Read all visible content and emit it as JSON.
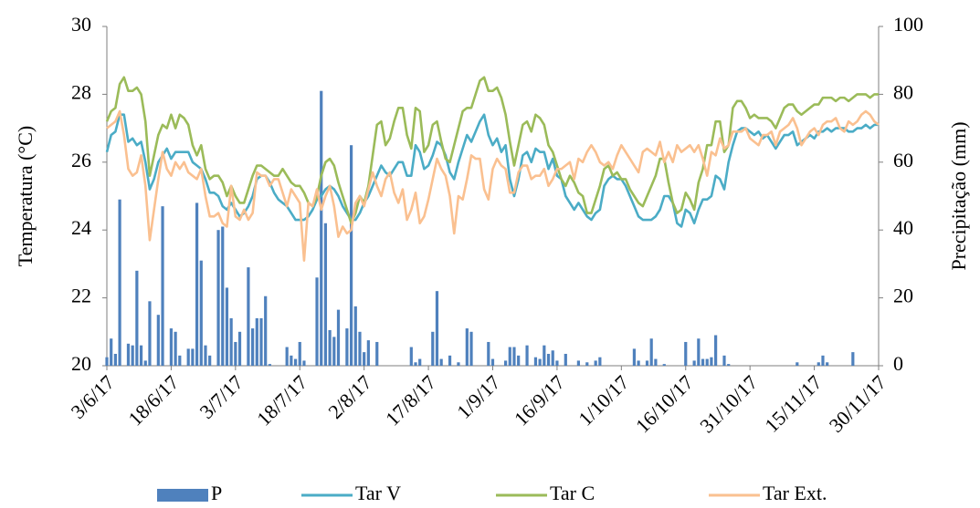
{
  "chart_data": {
    "type": "bar-line",
    "y_label": "Temperatura (°C)",
    "y2_label": "Precipitação (mm)",
    "categories": [
      "3/6/17",
      null,
      null,
      null,
      null,
      null,
      null,
      null,
      null,
      null,
      null,
      null,
      null,
      null,
      null,
      "18/6/17",
      null,
      null,
      null,
      null,
      null,
      null,
      null,
      null,
      null,
      null,
      null,
      null,
      null,
      null,
      "3/7/17",
      null,
      null,
      null,
      null,
      null,
      null,
      null,
      null,
      null,
      null,
      null,
      null,
      null,
      null,
      "18/7/17",
      null,
      null,
      null,
      null,
      null,
      null,
      null,
      null,
      null,
      null,
      null,
      null,
      null,
      null,
      "2/8/17",
      null,
      null,
      null,
      null,
      null,
      null,
      null,
      null,
      null,
      null,
      null,
      null,
      null,
      null,
      "17/8/17",
      null,
      null,
      null,
      null,
      null,
      null,
      null,
      null,
      null,
      null,
      null,
      null,
      null,
      null,
      "1/9/17",
      null,
      null,
      null,
      null,
      null,
      null,
      null,
      null,
      null,
      null,
      null,
      null,
      null,
      null,
      "16/9/17",
      null,
      null,
      null,
      null,
      null,
      null,
      null,
      null,
      null,
      null,
      null,
      null,
      null,
      null,
      "1/10/17",
      null,
      null,
      null,
      null,
      null,
      null,
      null,
      null,
      null,
      null,
      null,
      null,
      null,
      null,
      "16/10/17",
      null,
      null,
      null,
      null,
      null,
      null,
      null,
      null,
      null,
      null,
      null,
      null,
      null,
      null,
      "31/10/17",
      null,
      null,
      null,
      null,
      null,
      null,
      null,
      null,
      null,
      null,
      null,
      null,
      null,
      null,
      "15/11/17",
      null,
      null,
      null,
      null,
      null,
      null,
      null,
      null,
      null,
      null,
      null,
      null,
      null,
      null,
      "30/11/17"
    ],
    "ylim": [
      20,
      30
    ],
    "yticks": [
      20,
      22,
      24,
      26,
      28,
      30
    ],
    "y2lim": [
      0,
      100
    ],
    "y2ticks": [
      0,
      20,
      40,
      60,
      80,
      100
    ],
    "legend": "bottom",
    "series": [
      {
        "name": "P",
        "type": "bar",
        "axis": "y2",
        "color": "#4f81bd",
        "values": [
          2.5,
          8,
          3.5,
          49,
          0,
          6.5,
          6,
          28,
          6,
          1.5,
          19,
          0,
          15,
          47,
          0,
          11,
          10,
          3,
          0,
          5,
          5,
          48,
          31,
          6,
          3,
          0,
          40,
          41,
          23,
          14,
          7,
          10,
          0,
          29,
          11,
          14,
          14,
          20.5,
          0.5,
          0,
          0,
          0,
          5.5,
          3,
          2,
          7,
          1.5,
          0,
          0,
          26,
          81,
          42,
          10.5,
          8.5,
          16.5,
          0,
          11,
          65,
          17.5,
          10,
          4,
          7.5,
          0,
          7,
          0,
          0,
          0,
          0,
          0,
          0,
          0,
          5.5,
          1,
          2,
          0,
          0,
          10,
          22,
          2,
          0,
          3,
          0,
          1,
          0,
          11,
          10,
          0,
          0,
          0,
          7,
          2,
          0,
          0,
          1.5,
          5.5,
          5.5,
          3,
          0,
          6,
          0,
          2.5,
          2,
          6,
          3.5,
          4.5,
          1.5,
          0,
          3.5,
          0,
          0,
          1.5,
          0,
          1,
          0,
          1.5,
          2.5,
          0,
          0,
          0,
          0,
          0,
          0,
          0,
          5,
          1.5,
          0,
          1.5,
          8,
          2,
          0,
          0.5,
          0,
          0,
          0,
          0,
          7,
          0,
          1.5,
          8,
          2,
          2,
          2.5,
          9,
          0,
          3,
          0.5,
          0,
          0,
          0,
          0,
          0,
          0,
          0,
          0,
          0,
          0,
          0,
          0,
          0,
          0,
          0,
          1,
          0,
          0,
          0,
          0,
          1,
          3,
          1,
          0,
          0,
          0,
          0,
          0,
          4,
          0,
          0,
          0,
          0,
          0,
          0
        ]
      },
      {
        "name": "Tar V",
        "type": "line",
        "color": "#4bacc6",
        "values": [
          26.3,
          26.8,
          26.9,
          27.4,
          27.4,
          26.6,
          26.7,
          26.5,
          26.6,
          26.0,
          25.2,
          25.5,
          26.0,
          26.2,
          26.4,
          26.1,
          26.3,
          26.3,
          26.3,
          26.3,
          26.0,
          25.9,
          25.8,
          25.5,
          25.1,
          25.1,
          25.0,
          24.7,
          24.6,
          24.8,
          24.6,
          24.4,
          24.5,
          24.7,
          25.0,
          25.5,
          25.6,
          25.6,
          25.4,
          25.1,
          24.9,
          24.8,
          24.7,
          24.5,
          24.3,
          24.3,
          24.3,
          24.4,
          24.6,
          24.9,
          25.0,
          25.2,
          25.3,
          25.2,
          25.0,
          24.7,
          24.5,
          24.3,
          24.3,
          24.5,
          24.8,
          25.0,
          25.3,
          25.6,
          25.9,
          25.7,
          25.6,
          25.8,
          26.0,
          26.0,
          25.6,
          25.6,
          26.5,
          26.3,
          25.8,
          25.9,
          26.2,
          26.6,
          26.5,
          26.2,
          25.7,
          25.5,
          26.0,
          26.4,
          26.8,
          26.6,
          26.9,
          27.2,
          27.4,
          26.8,
          26.5,
          26.7,
          26.3,
          26.5,
          25.5,
          25.0,
          25.5,
          26.2,
          26.3,
          26.0,
          26.4,
          26.3,
          26.3,
          25.8,
          26.1,
          25.6,
          25.5,
          25.0,
          24.8,
          24.6,
          24.8,
          24.6,
          24.4,
          24.3,
          24.5,
          24.6,
          25.3,
          25.5,
          25.6,
          25.5,
          25.5,
          25.3,
          25.0,
          24.7,
          24.4,
          24.3,
          24.3,
          24.3,
          24.4,
          24.6,
          25.0,
          25.0,
          24.8,
          24.2,
          24.1,
          24.6,
          24.5,
          24.2,
          24.6,
          24.9,
          24.9,
          25.0,
          25.6,
          25.5,
          25.2,
          26.0,
          26.5,
          26.9,
          27.0,
          27.0,
          26.9,
          26.8,
          26.9,
          26.7,
          26.8,
          26.6,
          26.4,
          26.6,
          26.8,
          26.8,
          26.9,
          26.5,
          26.6,
          26.7,
          26.8,
          26.7,
          26.9,
          26.9,
          27.0,
          26.9,
          27.0,
          27.0,
          27.0,
          26.9,
          26.9,
          27.0,
          27.0,
          27.1,
          27.0,
          27.1,
          27.1
        ]
      },
      {
        "name": "Tar C",
        "type": "line",
        "color": "#9bbb59",
        "values": [
          27.2,
          27.5,
          27.6,
          28.3,
          28.5,
          28.1,
          28.1,
          28.2,
          28.0,
          27.2,
          25.6,
          26.2,
          26.8,
          27.1,
          27.0,
          27.4,
          27.0,
          27.4,
          27.3,
          27.1,
          26.5,
          26.2,
          26.5,
          25.8,
          25.5,
          25.6,
          25.6,
          25.4,
          25.0,
          25.3,
          25.0,
          24.8,
          24.8,
          25.2,
          25.6,
          25.9,
          25.9,
          25.8,
          25.7,
          25.6,
          25.6,
          25.8,
          25.6,
          25.4,
          25.3,
          25.3,
          25.1,
          24.8,
          24.7,
          25.0,
          25.6,
          26.0,
          26.1,
          25.9,
          25.4,
          25.0,
          24.6,
          24.2,
          24.5,
          25.0,
          24.8,
          25.3,
          26.2,
          27.1,
          27.2,
          26.5,
          26.7,
          27.2,
          27.6,
          27.6,
          26.8,
          26.4,
          27.6,
          27.5,
          26.3,
          26.5,
          27.1,
          27.2,
          26.6,
          26.1,
          26.0,
          26.5,
          27.0,
          27.5,
          27.6,
          27.6,
          28.0,
          28.4,
          28.5,
          28.1,
          28.1,
          28.2,
          27.9,
          27.4,
          26.6,
          25.9,
          26.5,
          27.1,
          27.2,
          26.9,
          27.4,
          27.3,
          27.1,
          26.5,
          26.3,
          25.9,
          25.5,
          25.3,
          25.6,
          25.4,
          25.1,
          25.0,
          24.5,
          24.5,
          24.9,
          25.3,
          25.8,
          25.9,
          25.6,
          25.7,
          25.5,
          25.5,
          25.2,
          25.0,
          24.8,
          24.7,
          25.0,
          25.3,
          25.6,
          26.1,
          26.1,
          25.4,
          24.8,
          24.5,
          24.6,
          25.1,
          24.9,
          24.6,
          25.4,
          25.8,
          26.5,
          26.5,
          27.2,
          27.2,
          26.3,
          26.5,
          27.6,
          27.8,
          27.8,
          27.6,
          27.3,
          27.4,
          27.3,
          27.3,
          27.3,
          27.2,
          27.0,
          27.3,
          27.6,
          27.7,
          27.7,
          27.5,
          27.4,
          27.5,
          27.6,
          27.7,
          27.7,
          27.9,
          27.9,
          27.9,
          27.8,
          27.9,
          27.9,
          27.8,
          27.9,
          28.0,
          28.0,
          28.0,
          27.9,
          28.0,
          28.0
        ]
      },
      {
        "name": "Tar Ext.",
        "type": "line",
        "color": "#fac090",
        "values": [
          27.0,
          27.1,
          27.2,
          27.5,
          26.8,
          25.8,
          25.6,
          25.7,
          26.2,
          25.3,
          23.7,
          24.6,
          25.5,
          26.3,
          25.8,
          25.6,
          26.0,
          25.8,
          26.0,
          25.7,
          25.6,
          25.5,
          25.8,
          25.0,
          24.4,
          24.4,
          24.5,
          24.2,
          24.1,
          25.3,
          24.4,
          24.3,
          24.6,
          24.3,
          24.5,
          25.7,
          25.6,
          25.6,
          25.3,
          25.5,
          25.5,
          25.1,
          24.7,
          25.2,
          25.0,
          24.8,
          23.1,
          24.8,
          24.7,
          25.2,
          24.6,
          25.0,
          25.3,
          24.7,
          23.8,
          24.1,
          23.9,
          24.0,
          24.8,
          25.0,
          24.7,
          25.2,
          25.7,
          25.3,
          25.0,
          25.5,
          25.7,
          25.1,
          24.8,
          25.2,
          24.3,
          24.6,
          25.1,
          24.2,
          24.4,
          24.9,
          25.5,
          26.1,
          25.8,
          25.6,
          25.0,
          23.9,
          25.0,
          24.9,
          25.5,
          26.2,
          26.1,
          26.1,
          25.2,
          24.9,
          25.8,
          26.1,
          25.9,
          25.8,
          25.1,
          25.1,
          25.7,
          25.9,
          25.9,
          25.5,
          25.6,
          25.6,
          25.8,
          25.3,
          25.5,
          25.8,
          25.8,
          25.9,
          26.0,
          25.5,
          26.1,
          26.0,
          26.3,
          26.5,
          26.3,
          26.0,
          25.9,
          26.0,
          25.8,
          26.2,
          26.5,
          26.3,
          26.1,
          25.9,
          25.7,
          26.3,
          26.4,
          26.3,
          26.2,
          26.6,
          26.0,
          26.3,
          26.0,
          26.5,
          26.3,
          26.4,
          26.5,
          26.3,
          26.5,
          26.1,
          25.6,
          26.3,
          26.2,
          26.7,
          26.4,
          26.5,
          26.9,
          26.9,
          26.9,
          27.0,
          26.7,
          26.6,
          26.5,
          26.8,
          26.8,
          26.9,
          26.5,
          26.9,
          27.0,
          27.1,
          27.3,
          27.0,
          26.5,
          26.7,
          26.9,
          27.0,
          26.8,
          27.1,
          27.2,
          27.2,
          27.3,
          27.0,
          26.9,
          27.2,
          27.1,
          27.2,
          27.4,
          27.5,
          27.4,
          27.2,
          27.1
        ]
      }
    ]
  }
}
